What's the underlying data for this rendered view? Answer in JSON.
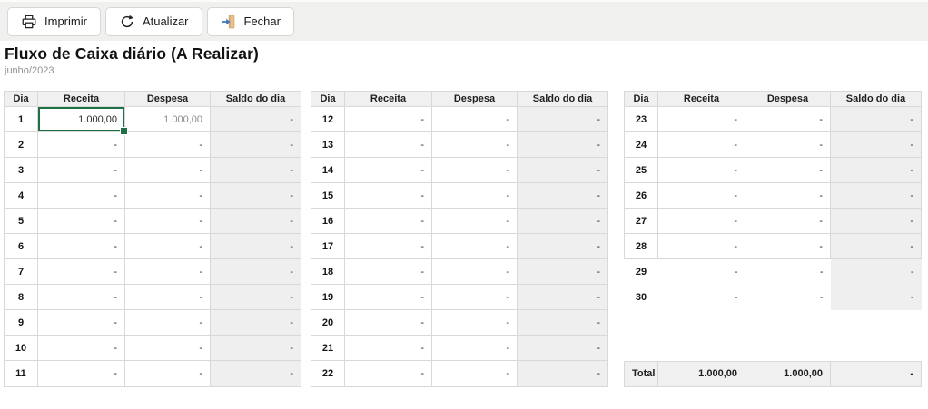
{
  "toolbar": {
    "buttons": [
      {
        "label": "Imprimir",
        "icon": "printer-icon"
      },
      {
        "label": "Atualizar",
        "icon": "refresh-icon"
      },
      {
        "label": "Fechar",
        "icon": "exit-door-icon"
      }
    ]
  },
  "header": {
    "title": "Fluxo de Caixa diário (A Realizar)",
    "period": "junho/2023"
  },
  "cashflow": {
    "columns": [
      "Dia",
      "Receita",
      "Despesa",
      "Saldo do dia"
    ],
    "groups": [
      {
        "name": "days-1-11",
        "rows": [
          {
            "dia": "1",
            "receita": "1.000,00",
            "despesa": "1.000,00",
            "saldo": "-",
            "selected_cell": "receita",
            "despesa_muted": true
          },
          {
            "dia": "2",
            "receita": "-",
            "despesa": "-",
            "saldo": "-"
          },
          {
            "dia": "3",
            "receita": "-",
            "despesa": "-",
            "saldo": "-"
          },
          {
            "dia": "4",
            "receita": "-",
            "despesa": "-",
            "saldo": "-"
          },
          {
            "dia": "5",
            "receita": "-",
            "despesa": "-",
            "saldo": "-"
          },
          {
            "dia": "6",
            "receita": "-",
            "despesa": "-",
            "saldo": "-"
          },
          {
            "dia": "7",
            "receita": "-",
            "despesa": "-",
            "saldo": "-"
          },
          {
            "dia": "8",
            "receita": "-",
            "despesa": "-",
            "saldo": "-"
          },
          {
            "dia": "9",
            "receita": "-",
            "despesa": "-",
            "saldo": "-"
          },
          {
            "dia": "10",
            "receita": "-",
            "despesa": "-",
            "saldo": "-"
          },
          {
            "dia": "11",
            "receita": "-",
            "despesa": "-",
            "saldo": "-"
          }
        ]
      },
      {
        "name": "days-12-22",
        "rows": [
          {
            "dia": "12",
            "receita": "-",
            "despesa": "-",
            "saldo": "-"
          },
          {
            "dia": "13",
            "receita": "-",
            "despesa": "-",
            "saldo": "-"
          },
          {
            "dia": "14",
            "receita": "-",
            "despesa": "-",
            "saldo": "-"
          },
          {
            "dia": "15",
            "receita": "-",
            "despesa": "-",
            "saldo": "-"
          },
          {
            "dia": "16",
            "receita": "-",
            "despesa": "-",
            "saldo": "-"
          },
          {
            "dia": "17",
            "receita": "-",
            "despesa": "-",
            "saldo": "-"
          },
          {
            "dia": "18",
            "receita": "-",
            "despesa": "-",
            "saldo": "-"
          },
          {
            "dia": "19",
            "receita": "-",
            "despesa": "-",
            "saldo": "-"
          },
          {
            "dia": "20",
            "receita": "-",
            "despesa": "-",
            "saldo": "-"
          },
          {
            "dia": "21",
            "receita": "-",
            "despesa": "-",
            "saldo": "-"
          },
          {
            "dia": "22",
            "receita": "-",
            "despesa": "-",
            "saldo": "-"
          }
        ]
      },
      {
        "name": "days-23-30",
        "rows": [
          {
            "dia": "23",
            "receita": "-",
            "despesa": "-",
            "saldo": "-"
          },
          {
            "dia": "24",
            "receita": "-",
            "despesa": "-",
            "saldo": "-"
          },
          {
            "dia": "25",
            "receita": "-",
            "despesa": "-",
            "saldo": "-"
          },
          {
            "dia": "26",
            "receita": "-",
            "despesa": "-",
            "saldo": "-"
          },
          {
            "dia": "27",
            "receita": "-",
            "despesa": "-",
            "saldo": "-"
          },
          {
            "dia": "28",
            "receita": "-",
            "despesa": "-",
            "saldo": "-"
          },
          {
            "dia": "29",
            "receita": "-",
            "despesa": "-",
            "saldo": "-",
            "outside_grid": true
          },
          {
            "dia": "30",
            "receita": "-",
            "despesa": "-",
            "saldo": "-",
            "outside_grid": true
          }
        ]
      }
    ],
    "total": {
      "label": "Total",
      "receita": "1.000,00",
      "despesa": "1.000,00",
      "saldo": "-"
    }
  },
  "colors": {
    "selection": "#1E7145",
    "toolbar_bg": "#F0F0EE",
    "header_cell_bg": "#F0F0F0",
    "saldo_cell_bg": "#EFEFEF",
    "grid_border": "#D8D8D8",
    "door_tan": "#E9C38B",
    "arrow_blue": "#3F76BF"
  }
}
